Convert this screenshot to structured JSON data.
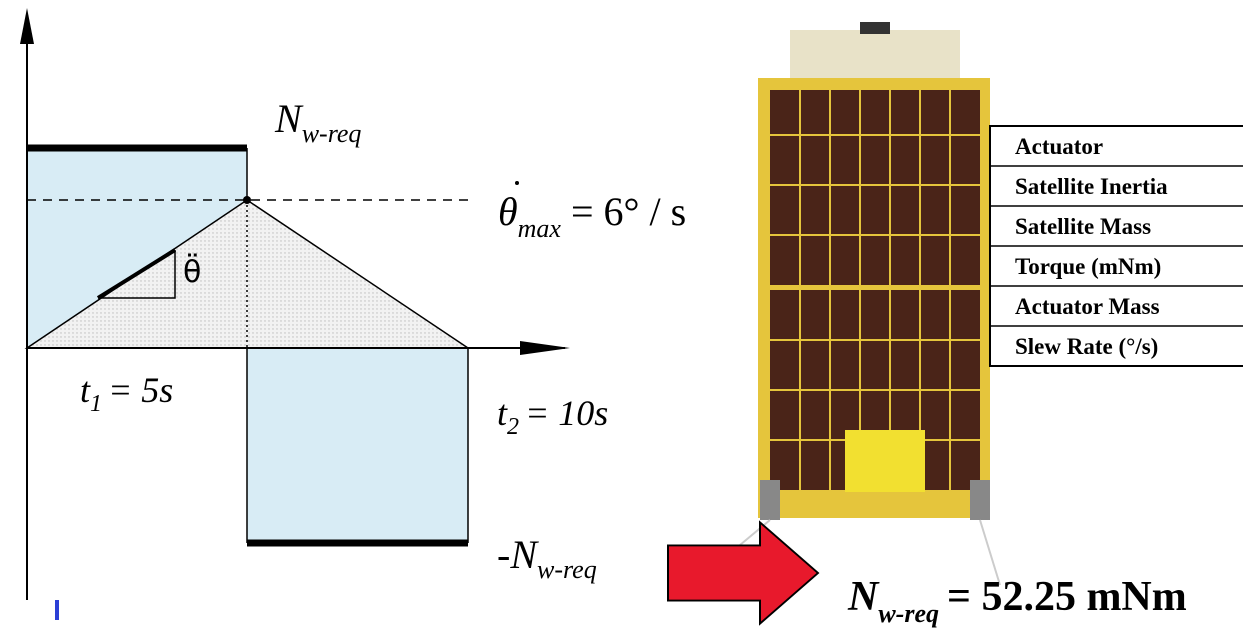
{
  "labels": {
    "n_req": {
      "main": "N",
      "sub": "w-req"
    },
    "theta_max": {
      "main": "θ",
      "sub": "max",
      "rest": "= 6° / s"
    },
    "theta_ddot": "θ̈",
    "t1": {
      "main": "t",
      "sub": "1",
      "rest": "= 5s"
    },
    "t2": {
      "main": "t",
      "sub": "2",
      "rest": "= 10s"
    },
    "neg_n_req": {
      "main": "-N",
      "sub": "w-req"
    },
    "result": {
      "main": "N",
      "sub": "w-req",
      "rest": "= 52.25 mNm"
    }
  },
  "table": {
    "rows": [
      "Actuator",
      "Satellite Inertia",
      "Satellite Mass",
      "Torque (mNm)",
      "Actuator Mass",
      "Slew Rate (°/s)"
    ]
  }
}
